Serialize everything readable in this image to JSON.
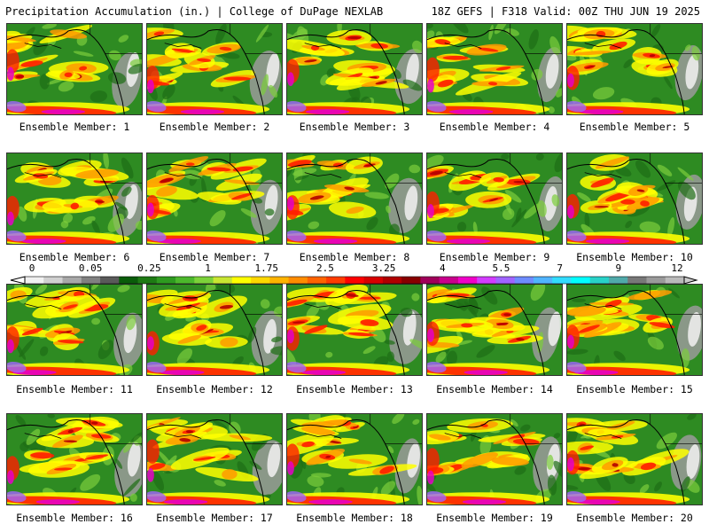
{
  "header": {
    "title": "Precipitation Accumulation (in.) | College of DuPage NEXLAB",
    "run_info": "18Z GEFS | F318 Valid: 00Z THU JUN 19 2025"
  },
  "legend": {
    "ticks": [
      "0",
      "0.05",
      "0.25",
      "1",
      "1.75",
      "2.5",
      "3.25",
      "4",
      "5.5",
      "7",
      "9",
      "12"
    ],
    "colors": [
      "#f0f0f0",
      "#d0d0d0",
      "#a8a8a8",
      "#808080",
      "#5a5a5a",
      "#0a5c0a",
      "#1e7a14",
      "#2e9a20",
      "#4cb82c",
      "#7cd23a",
      "#c8e632",
      "#ffff00",
      "#ffd800",
      "#ffb400",
      "#ff8c00",
      "#ff6400",
      "#ff3c00",
      "#ff0000",
      "#d80000",
      "#b00000",
      "#880000",
      "#a0005a",
      "#c8008c",
      "#f000c8",
      "#d23cff",
      "#a064ff",
      "#6e8cff",
      "#50b4ff",
      "#32dcff",
      "#00ffff",
      "#28d2c8",
      "#50aaaa",
      "#787878",
      "#9a9a9a",
      "#bababa"
    ]
  },
  "members": [
    {
      "label": "Ensemble Member: 1"
    },
    {
      "label": "Ensemble Member: 2"
    },
    {
      "label": "Ensemble Member: 3"
    },
    {
      "label": "Ensemble Member: 4"
    },
    {
      "label": "Ensemble Member: 5"
    },
    {
      "label": "Ensemble Member: 6"
    },
    {
      "label": "Ensemble Member: 7"
    },
    {
      "label": "Ensemble Member: 8"
    },
    {
      "label": "Ensemble Member: 9"
    },
    {
      "label": "Ensemble Member: 10"
    },
    {
      "label": "Ensemble Member: 11"
    },
    {
      "label": "Ensemble Member: 12"
    },
    {
      "label": "Ensemble Member: 13"
    },
    {
      "label": "Ensemble Member: 14"
    },
    {
      "label": "Ensemble Member: 15"
    },
    {
      "label": "Ensemble Member: 16"
    },
    {
      "label": "Ensemble Member: 17"
    },
    {
      "label": "Ensemble Member: 18"
    },
    {
      "label": "Ensemble Member: 19"
    },
    {
      "label": "Ensemble Member: 20"
    }
  ],
  "map_colors": {
    "land_green": "#2e8b22",
    "dark_green": "#1e6e16",
    "light_green": "#7ccd3c",
    "yellow": "#ffff00",
    "orange": "#ff9a00",
    "red": "#ff1e00",
    "darkred": "#b40000",
    "magenta": "#e600c8",
    "purple": "#a064ff",
    "blue": "#5aa0ff",
    "gray": "#9a9a9a",
    "white": "#ececec",
    "coast": "#000000"
  }
}
